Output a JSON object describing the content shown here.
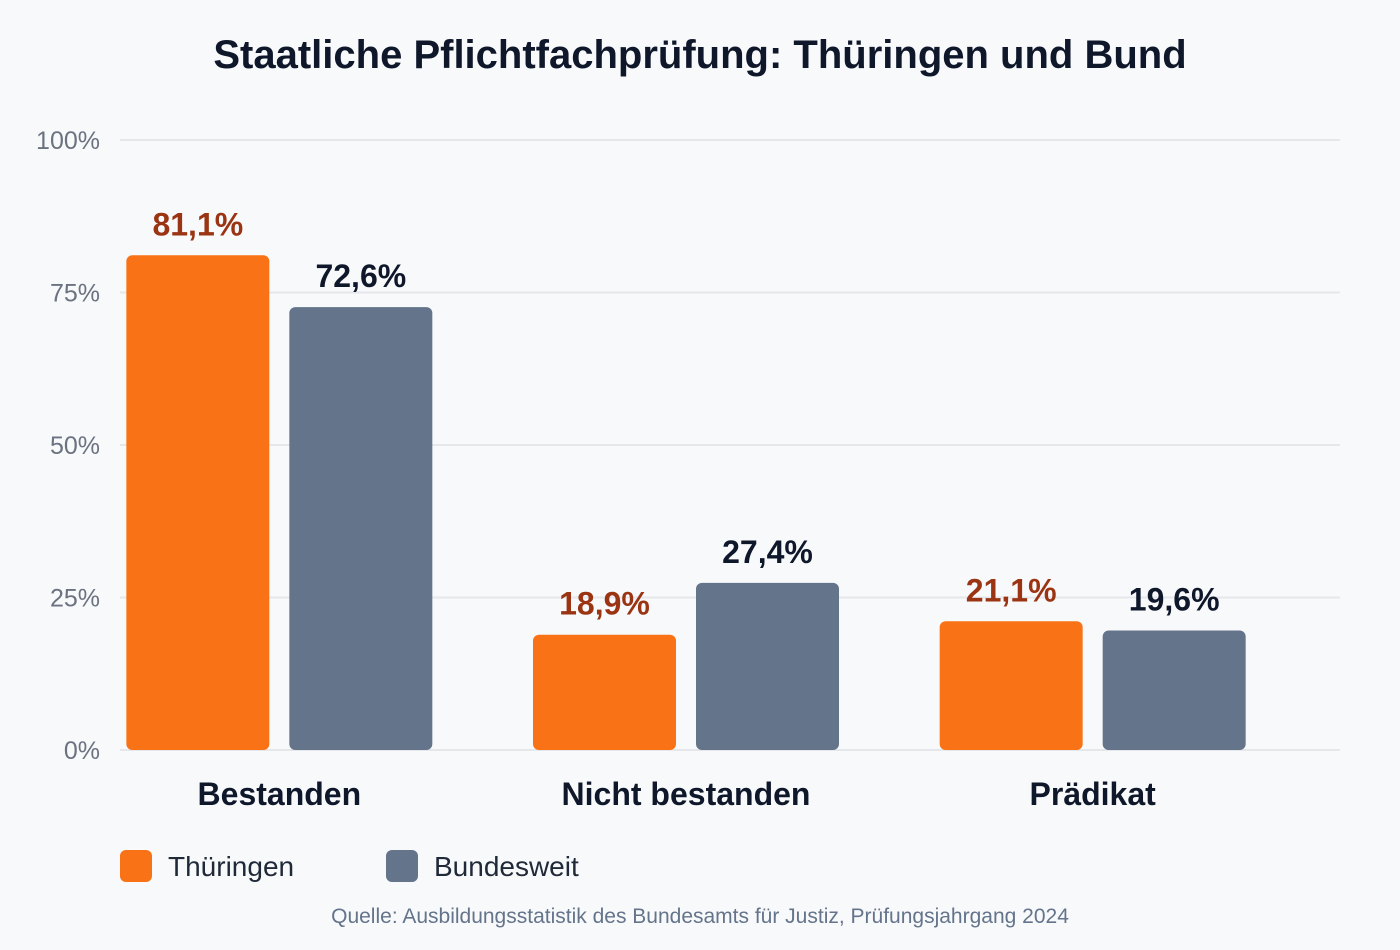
{
  "chart_data": {
    "type": "bar",
    "title": "Staatliche Pflichtfachprüfung: Thüringen und Bund",
    "categories": [
      "Bestanden",
      "Nicht bestanden",
      "Prädikat"
    ],
    "series": [
      {
        "name": "Thüringen",
        "values": [
          81.1,
          18.9,
          21.1
        ],
        "labels": [
          "81,1%",
          "18,9%",
          "21,1%"
        ],
        "color": "#f97316",
        "label_color": "#9a3412"
      },
      {
        "name": "Bundesweit",
        "values": [
          72.6,
          27.4,
          19.6
        ],
        "labels": [
          "72,6%",
          "27,4%",
          "19,6%"
        ],
        "color": "#64748b",
        "label_color": "#0f172a"
      }
    ],
    "ylim": [
      0,
      100
    ],
    "yticks": [
      0,
      25,
      50,
      75,
      100
    ],
    "ytick_labels": [
      "0%",
      "25%",
      "50%",
      "75%",
      "100%"
    ],
    "grid": true,
    "legend_position": "bottom-left",
    "source": "Quelle: Ausbildungsstatistik des Bundesamts für Justiz, Prüfungsjahrgang 2024"
  }
}
